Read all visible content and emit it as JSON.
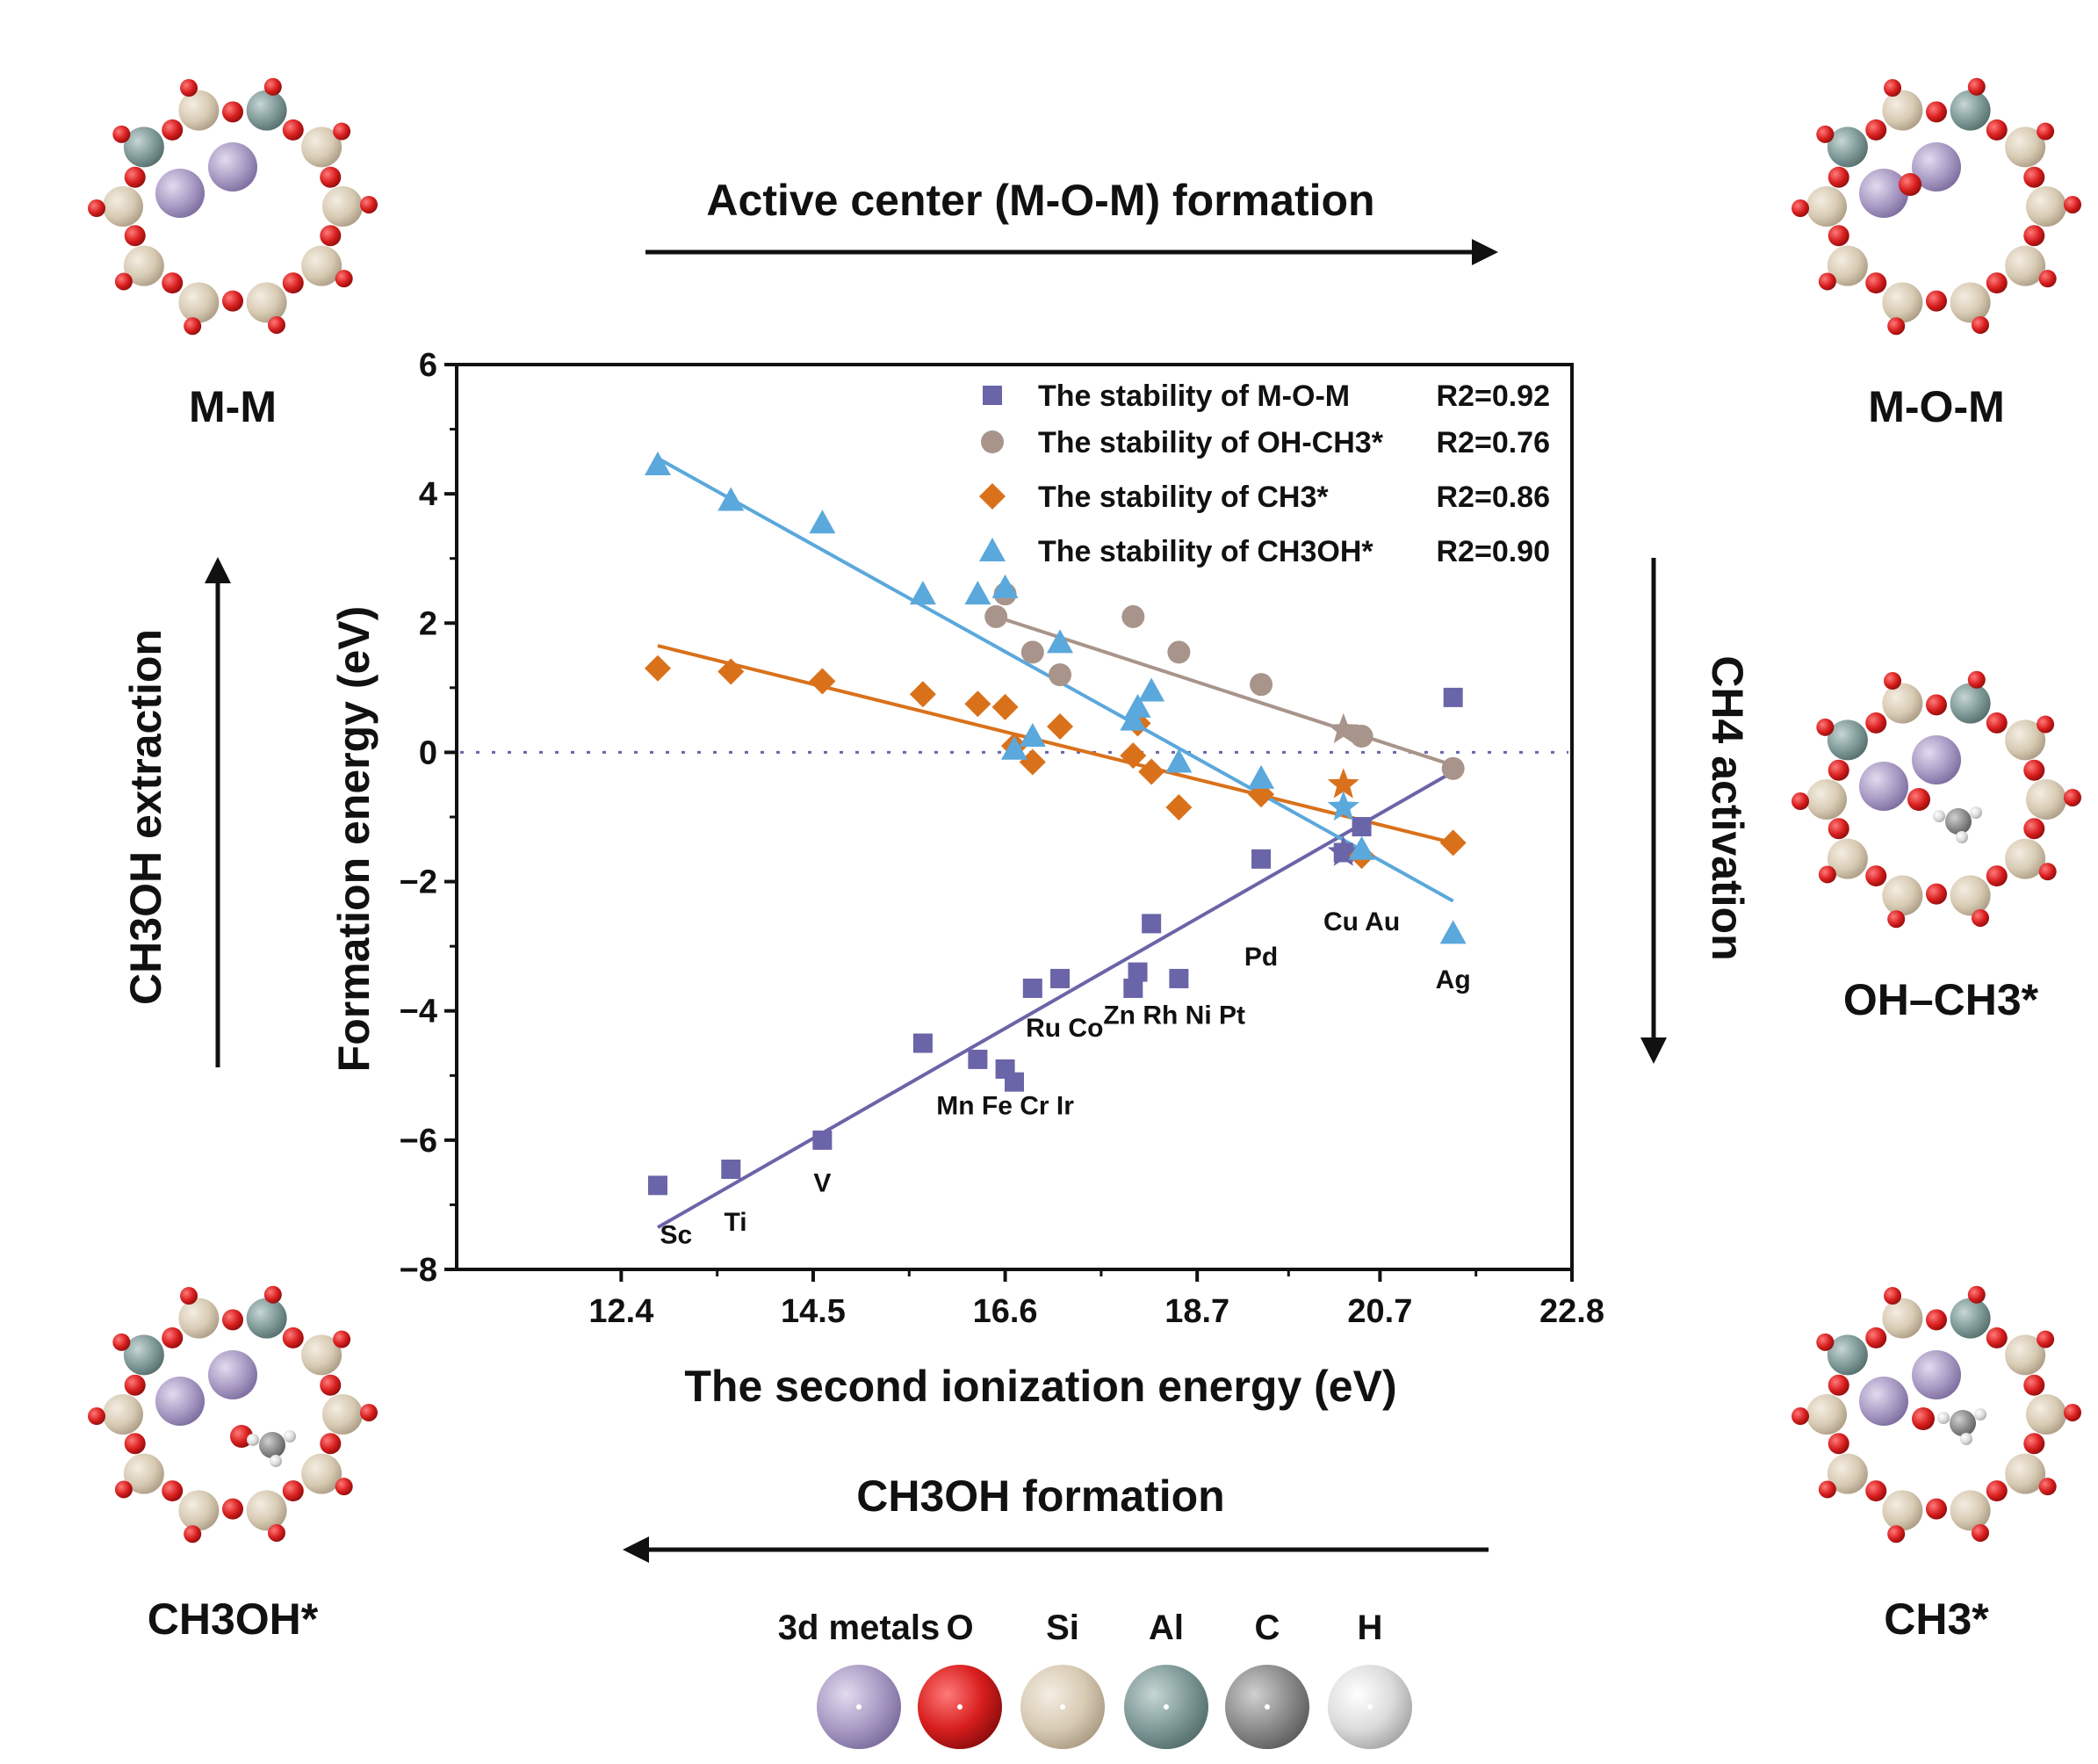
{
  "cycle": {
    "top_arrow_label": "Active center (M-O-M) formation",
    "right_arrow_label": "CH4 activation",
    "bottom_arrow_label": "CH3OH formation",
    "left_arrow_label": "CH3OH extraction",
    "structures": {
      "top_left": "M-M",
      "top_right": "M-O-M",
      "right": "OH–CH3*",
      "bottom_right": "CH3*",
      "bottom_left": "CH3OH*"
    }
  },
  "atom_legend": {
    "items": [
      {
        "label": "3d metals",
        "color": "#a99bc4"
      },
      {
        "label": "O",
        "color": "#d81e1e"
      },
      {
        "label": "Si",
        "color": "#d8cbb4"
      },
      {
        "label": "Al",
        "color": "#7f9a98"
      },
      {
        "label": "C",
        "color": "#8c8c8c"
      },
      {
        "label": "H",
        "color": "#dcdcdc"
      }
    ]
  },
  "chart_data": {
    "type": "scatter",
    "xlabel": "The second ionization energy (eV)",
    "ylabel": "Formation energy (eV)",
    "xlim": [
      10.6,
      22.8
    ],
    "ylim": [
      -8,
      6
    ],
    "xticks": [
      12.4,
      14.5,
      16.6,
      18.7,
      20.7,
      22.8
    ],
    "yticks": [
      6,
      4,
      2,
      0,
      -2,
      -4,
      -6,
      -8
    ],
    "reference_line_y": 0,
    "series": [
      {
        "name": "The stability of M-O-M",
        "r2": "R2=0.92",
        "marker": "square",
        "color": "#6a64a8",
        "x": [
          12.8,
          13.6,
          14.6,
          15.7,
          16.3,
          16.6,
          16.7,
          16.9,
          17.2,
          18.0,
          18.05,
          18.2,
          18.5,
          19.4,
          20.3,
          20.5,
          21.5
        ],
        "y": [
          -6.7,
          -6.45,
          -6.0,
          -4.5,
          -4.75,
          -4.9,
          -5.1,
          -3.65,
          -3.5,
          -3.65,
          -3.4,
          -2.65,
          -3.5,
          -1.65,
          -1.55,
          -1.15,
          0.85
        ],
        "star": {
          "x": 20.3,
          "y": -1.55
        },
        "fit": {
          "x0": 12.8,
          "y0": -7.35,
          "x1": 21.5,
          "y1": -0.3
        }
      },
      {
        "name": "The stability of OH-CH3*",
        "r2": "R2=0.76",
        "marker": "circle",
        "color": "#a8948a",
        "x": [
          16.5,
          16.6,
          16.9,
          17.2,
          18.0,
          18.5,
          19.4,
          20.5,
          21.5
        ],
        "y": [
          2.1,
          2.45,
          1.55,
          1.2,
          2.1,
          1.55,
          1.05,
          0.25,
          -0.25
        ],
        "star": {
          "x": 20.3,
          "y": 0.35
        },
        "fit": {
          "x0": 16.5,
          "y0": 2.1,
          "x1": 21.5,
          "y1": -0.2
        }
      },
      {
        "name": "The stability of CH3*",
        "r2": "R2=0.86",
        "marker": "diamond",
        "color": "#d9711b",
        "x": [
          12.8,
          13.6,
          14.6,
          15.7,
          16.3,
          16.6,
          16.7,
          16.9,
          17.2,
          18.0,
          18.05,
          18.2,
          18.5,
          19.4,
          20.5,
          21.5
        ],
        "y": [
          1.3,
          1.25,
          1.1,
          0.9,
          0.75,
          0.7,
          0.1,
          -0.15,
          0.4,
          -0.05,
          0.45,
          -0.3,
          -0.85,
          -0.65,
          -1.6,
          -1.4
        ],
        "star": {
          "x": 20.3,
          "y": -0.5
        },
        "fit": {
          "x0": 12.8,
          "y0": 1.65,
          "x1": 21.5,
          "y1": -1.4
        }
      },
      {
        "name": "The stability of CH3OH*",
        "r2": "R2=0.90",
        "marker": "triangle",
        "color": "#5aa8dc",
        "x": [
          12.8,
          13.6,
          14.6,
          15.7,
          16.3,
          16.6,
          16.7,
          16.9,
          17.2,
          18.0,
          18.05,
          18.2,
          18.5,
          19.4,
          20.5,
          21.5
        ],
        "y": [
          4.45,
          3.9,
          3.55,
          2.45,
          2.45,
          2.55,
          0.05,
          0.25,
          1.7,
          0.5,
          0.7,
          0.95,
          -0.15,
          -0.4,
          -1.5,
          -2.8
        ],
        "star": {
          "x": 20.3,
          "y": -0.85
        },
        "fit": {
          "x0": 12.8,
          "y0": 4.55,
          "x1": 21.5,
          "y1": -2.3
        }
      }
    ],
    "point_labels": [
      {
        "text": "Sc",
        "x": 13.0,
        "y": -7.6
      },
      {
        "text": "Ti",
        "x": 13.65,
        "y": -7.4
      },
      {
        "text": "V",
        "x": 14.6,
        "y": -6.8
      },
      {
        "text": "Mn Fe Cr Ir",
        "x": 16.6,
        "y": -5.6
      },
      {
        "text": "Ru Co",
        "x": 17.25,
        "y": -4.4
      },
      {
        "text": "Zn Rh Ni Pt",
        "x": 18.45,
        "y": -4.2
      },
      {
        "text": "Pd",
        "x": 19.4,
        "y": -3.3
      },
      {
        "text": "Cu Au",
        "x": 20.5,
        "y": -2.75
      },
      {
        "text": "Ag",
        "x": 21.5,
        "y": -3.65
      }
    ]
  }
}
